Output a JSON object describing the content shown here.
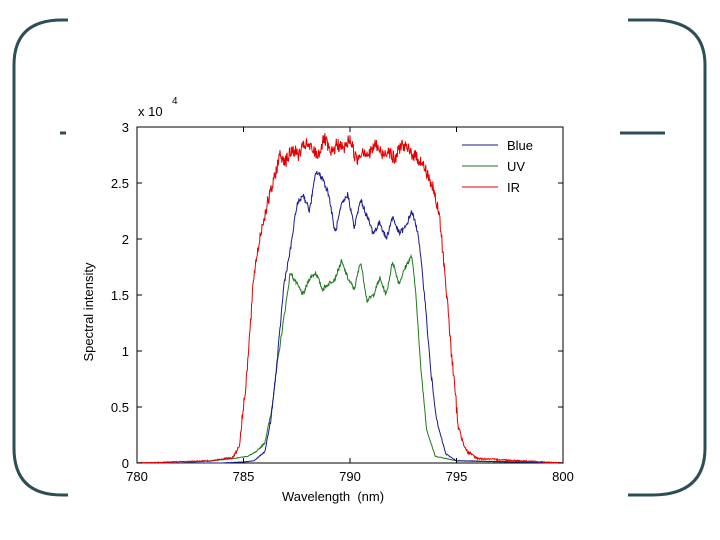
{
  "slide": {
    "frame_color": "#2e4e57"
  },
  "chart_data": {
    "type": "line",
    "title": "",
    "xlabel": "Wavelength  (nm)",
    "ylabel": "Spectral intensity",
    "y_multiplier": {
      "base": "x 10",
      "exponent": "4"
    },
    "xlim": [
      780,
      800
    ],
    "ylim": [
      0,
      3
    ],
    "x_ticks": [
      780,
      785,
      790,
      795,
      800
    ],
    "x_tick_labels": [
      "780",
      "785",
      "790",
      "795",
      "800"
    ],
    "y_ticks": [
      0,
      0.5,
      1,
      1.5,
      2,
      2.5,
      3
    ],
    "y_tick_labels": [
      "0",
      "0.5",
      "1",
      "1.5",
      "2",
      "2.5",
      "3"
    ],
    "grid": false,
    "legend_position": "top-right",
    "series": [
      {
        "name": "Blue",
        "color": "#1a1a8c",
        "x": [
          780.0,
          784.0,
          785.0,
          785.5,
          786.0,
          786.3,
          786.6,
          786.9,
          787.2,
          787.5,
          787.8,
          788.1,
          788.4,
          788.7,
          789.0,
          789.3,
          789.6,
          789.9,
          790.2,
          790.5,
          790.8,
          791.1,
          791.4,
          791.7,
          792.0,
          792.3,
          792.6,
          792.9,
          793.2,
          793.5,
          793.8,
          794.1,
          794.5,
          795.0,
          800.0
        ],
        "y": [
          0.0,
          0.0,
          0.01,
          0.02,
          0.1,
          0.4,
          0.95,
          1.6,
          1.9,
          2.3,
          2.4,
          2.25,
          2.6,
          2.55,
          2.4,
          2.05,
          2.3,
          2.4,
          2.1,
          2.35,
          2.2,
          2.05,
          2.15,
          2.0,
          2.2,
          2.05,
          2.1,
          2.25,
          2.05,
          1.5,
          0.8,
          0.35,
          0.08,
          0.02,
          0.0
        ]
      },
      {
        "name": "UV",
        "color": "#1e7a1e",
        "x": [
          780.0,
          782.0,
          783.5,
          784.5,
          785.2,
          785.6,
          786.0,
          786.3,
          786.6,
          786.9,
          787.2,
          787.5,
          787.8,
          788.1,
          788.4,
          788.7,
          789.0,
          789.3,
          789.6,
          789.9,
          790.2,
          790.5,
          790.8,
          791.1,
          791.4,
          791.7,
          792.0,
          792.3,
          792.6,
          792.9,
          793.1,
          793.3,
          793.6,
          794.0,
          795.0,
          800.0
        ],
        "y": [
          0.0,
          0.0,
          0.02,
          0.04,
          0.06,
          0.1,
          0.18,
          0.45,
          0.9,
          1.3,
          1.7,
          1.6,
          1.5,
          1.65,
          1.7,
          1.55,
          1.6,
          1.65,
          1.8,
          1.65,
          1.55,
          1.8,
          1.45,
          1.5,
          1.65,
          1.5,
          1.8,
          1.6,
          1.75,
          1.85,
          1.5,
          0.9,
          0.3,
          0.06,
          0.02,
          0.0
        ]
      },
      {
        "name": "IR",
        "color": "#e00000",
        "x": [
          780.0,
          783.5,
          784.5,
          784.8,
          785.0,
          785.2,
          785.5,
          785.8,
          786.1,
          786.4,
          786.7,
          787.0,
          787.3,
          787.6,
          787.9,
          788.2,
          788.5,
          788.8,
          789.1,
          789.4,
          789.7,
          790.0,
          790.3,
          790.6,
          790.9,
          791.2,
          791.5,
          791.8,
          792.1,
          792.4,
          792.7,
          793.0,
          793.3,
          793.6,
          793.9,
          794.2,
          794.5,
          794.8,
          795.1,
          795.5,
          796.0,
          800.0
        ],
        "y": [
          0.0,
          0.02,
          0.05,
          0.15,
          0.5,
          0.9,
          1.7,
          2.05,
          2.3,
          2.5,
          2.75,
          2.7,
          2.8,
          2.75,
          2.85,
          2.8,
          2.75,
          2.9,
          2.75,
          2.85,
          2.8,
          2.9,
          2.7,
          2.8,
          2.75,
          2.85,
          2.75,
          2.8,
          2.7,
          2.85,
          2.8,
          2.75,
          2.7,
          2.6,
          2.45,
          2.2,
          1.6,
          0.9,
          0.3,
          0.1,
          0.04,
          0.0
        ]
      }
    ]
  }
}
